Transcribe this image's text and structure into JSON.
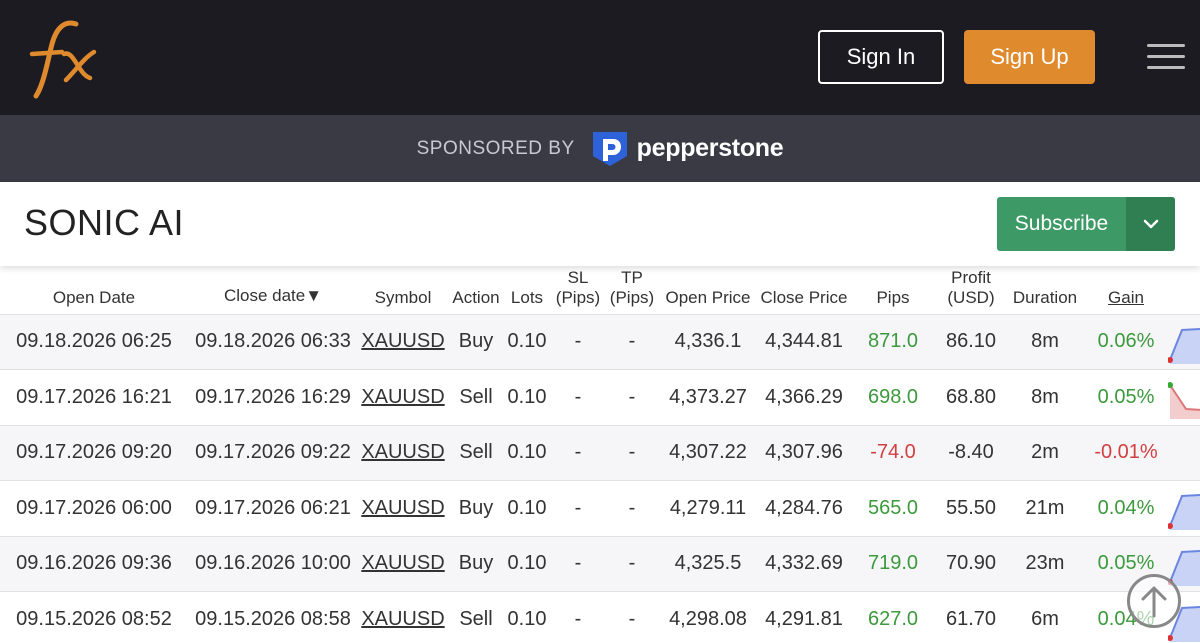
{
  "header": {
    "logo_text": "fx",
    "sign_in": "Sign In",
    "sign_up": "Sign Up"
  },
  "sponsor": {
    "label": "SPONSORED BY",
    "brand": "pepperstone"
  },
  "system": {
    "title": "SONIC AI",
    "subscribe": "Subscribe"
  },
  "table": {
    "headers": {
      "open_date": "Open Date",
      "close_date": "Close date▼",
      "symbol": "Symbol",
      "action": "Action",
      "lots": "Lots",
      "sl_1": "SL",
      "sl_2": "(Pips)",
      "tp_1": "TP",
      "tp_2": "(Pips)",
      "open_price": "Open Price",
      "close_price": "Close Price",
      "pips": "Pips",
      "profit_1": "Profit",
      "profit_2": "(USD)",
      "duration": "Duration",
      "gain": "Gain"
    },
    "rows": [
      {
        "open_date": "09.18.2026 06:25",
        "close_date": "09.18.2026 06:33",
        "symbol": "XAUUSD",
        "action": "Buy",
        "lots": "0.10",
        "sl": "-",
        "tp": "-",
        "open_price": "4,336.1",
        "close_price": "4,344.81",
        "pips": "871.0",
        "profit": "86.10",
        "duration": "8m",
        "gain": "0.06%",
        "positive": true,
        "trend": "up"
      },
      {
        "open_date": "09.17.2026 16:21",
        "close_date": "09.17.2026 16:29",
        "symbol": "XAUUSD",
        "action": "Sell",
        "lots": "0.10",
        "sl": "-",
        "tp": "-",
        "open_price": "4,373.27",
        "close_price": "4,366.29",
        "pips": "698.0",
        "profit": "68.80",
        "duration": "8m",
        "gain": "0.05%",
        "positive": true,
        "trend": "down"
      },
      {
        "open_date": "09.17.2026 09:20",
        "close_date": "09.17.2026 09:22",
        "symbol": "XAUUSD",
        "action": "Sell",
        "lots": "0.10",
        "sl": "-",
        "tp": "-",
        "open_price": "4,307.22",
        "close_price": "4,307.96",
        "pips": "-74.0",
        "profit": "-8.40",
        "duration": "2m",
        "gain": "-0.01%",
        "positive": false,
        "trend": "none"
      },
      {
        "open_date": "09.17.2026 06:00",
        "close_date": "09.17.2026 06:21",
        "symbol": "XAUUSD",
        "action": "Buy",
        "lots": "0.10",
        "sl": "-",
        "tp": "-",
        "open_price": "4,279.11",
        "close_price": "4,284.76",
        "pips": "565.0",
        "profit": "55.50",
        "duration": "21m",
        "gain": "0.04%",
        "positive": true,
        "trend": "up"
      },
      {
        "open_date": "09.16.2026 09:36",
        "close_date": "09.16.2026 10:00",
        "symbol": "XAUUSD",
        "action": "Buy",
        "lots": "0.10",
        "sl": "-",
        "tp": "-",
        "open_price": "4,325.5",
        "close_price": "4,332.69",
        "pips": "719.0",
        "profit": "70.90",
        "duration": "23m",
        "gain": "0.05%",
        "positive": true,
        "trend": "up"
      },
      {
        "open_date": "09.15.2026 08:52",
        "close_date": "09.15.2026 08:58",
        "symbol": "XAUUSD",
        "action": "Sell",
        "lots": "0.10",
        "sl": "-",
        "tp": "-",
        "open_price": "4,298.08",
        "close_price": "4,291.81",
        "pips": "627.0",
        "profit": "61.70",
        "duration": "6m",
        "gain": "0.04%",
        "positive": true,
        "trend": "up"
      }
    ]
  },
  "colors": {
    "topbar": "#1c1b22",
    "sponsor_bar": "#3a3a45",
    "signup": "#e08a2e",
    "subscribe": "#3d9a66",
    "positive": "#3c9a3c",
    "negative": "#d04040"
  }
}
